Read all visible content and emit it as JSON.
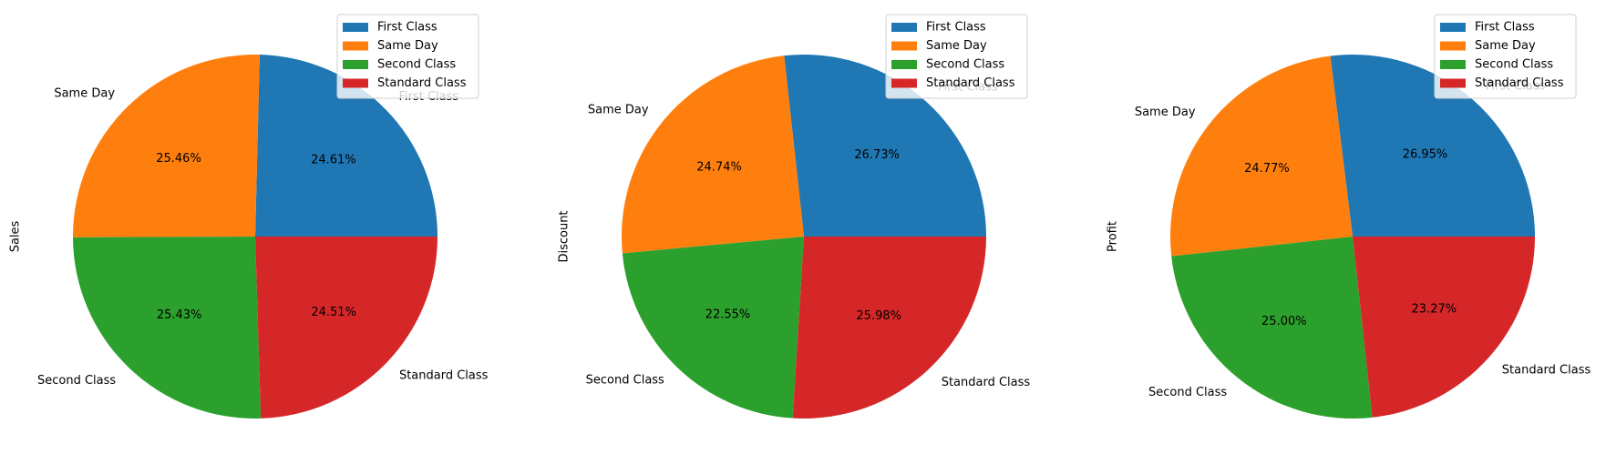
{
  "chart_data": [
    {
      "type": "pie",
      "ylabel": "Sales",
      "categories": [
        "First Class",
        "Same Day",
        "Second Class",
        "Standard Class"
      ],
      "values": [
        24.61,
        25.46,
        25.43,
        24.51
      ],
      "value_labels": [
        "24.61%",
        "25.46%",
        "25.43%",
        "24.51%"
      ],
      "colors": [
        "#1f77b4",
        "#ff7f0e",
        "#2ca02c",
        "#d62728"
      ],
      "legend": [
        "First Class",
        "Same Day",
        "Second Class",
        "Standard Class"
      ],
      "legend_position": "upper right"
    },
    {
      "type": "pie",
      "ylabel": "Discount",
      "categories": [
        "First Class",
        "Same Day",
        "Second Class",
        "Standard Class"
      ],
      "values": [
        26.73,
        24.74,
        22.55,
        25.98
      ],
      "value_labels": [
        "26.73%",
        "24.74%",
        "22.55%",
        "25.98%"
      ],
      "colors": [
        "#1f77b4",
        "#ff7f0e",
        "#2ca02c",
        "#d62728"
      ],
      "legend": [
        "First Class",
        "Same Day",
        "Second Class",
        "Standard Class"
      ],
      "legend_position": "upper right"
    },
    {
      "type": "pie",
      "ylabel": "Profit",
      "categories": [
        "First Class",
        "Same Day",
        "Second Class",
        "Standard Class"
      ],
      "values": [
        26.95,
        24.77,
        25.0,
        23.27
      ],
      "value_labels": [
        "26.95%",
        "24.77%",
        "25.00%",
        "23.27%"
      ],
      "colors": [
        "#1f77b4",
        "#ff7f0e",
        "#2ca02c",
        "#d62728"
      ],
      "legend": [
        "First Class",
        "Same Day",
        "Second Class",
        "Standard Class"
      ],
      "legend_position": "upper right"
    }
  ]
}
